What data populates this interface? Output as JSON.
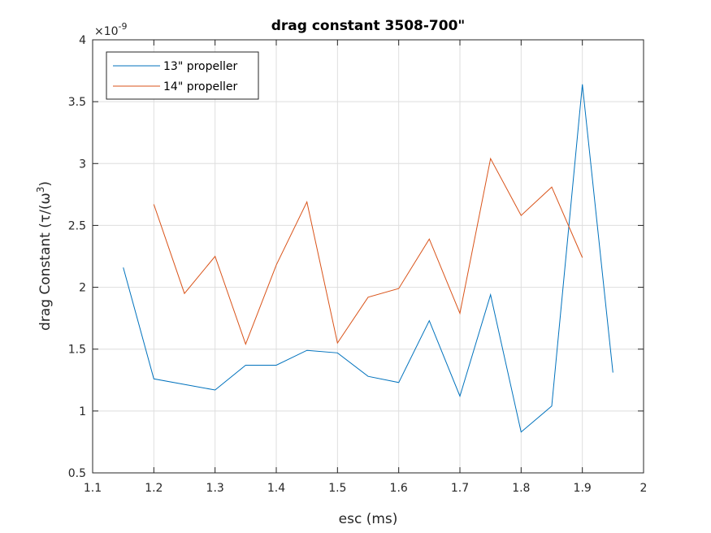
{
  "chart_data": {
    "type": "line",
    "title": "drag constant 3508-700\"",
    "xlabel": "esc (ms)",
    "ylabel": "drag Constant (τ/(ω",
    "ylabel_superscript": "3",
    "ylabel_suffix": ")",
    "y_exponent_label": "×10",
    "y_exponent_power": "-9",
    "xlim": [
      1.1,
      2.0
    ],
    "ylim": [
      0.5,
      4.0
    ],
    "xticks": [
      "1.1",
      "1.2",
      "1.3",
      "1.4",
      "1.5",
      "1.6",
      "1.7",
      "1.8",
      "1.9",
      "2"
    ],
    "yticks": [
      "0.5",
      "1",
      "1.5",
      "2",
      "2.5",
      "3",
      "3.5",
      "4"
    ],
    "grid": true,
    "legend_position": "top-left",
    "series": [
      {
        "name": "13\" propeller",
        "color": "#0072BD",
        "x": [
          1.15,
          1.2,
          1.3,
          1.35,
          1.4,
          1.45,
          1.5,
          1.55,
          1.6,
          1.65,
          1.7,
          1.75,
          1.8,
          1.85,
          1.9,
          1.95
        ],
        "y": [
          2.16,
          1.26,
          1.17,
          1.37,
          1.37,
          1.49,
          1.47,
          1.28,
          1.23,
          1.73,
          1.12,
          1.94,
          0.83,
          1.04,
          3.64,
          1.31
        ]
      },
      {
        "name": "14\" propeller",
        "color": "#D95319",
        "x": [
          1.2,
          1.25,
          1.3,
          1.35,
          1.4,
          1.45,
          1.5,
          1.55,
          1.6,
          1.65,
          1.7,
          1.75,
          1.8,
          1.85,
          1.9
        ],
        "y": [
          2.67,
          1.95,
          2.25,
          1.54,
          2.18,
          2.69,
          1.55,
          1.92,
          1.99,
          2.39,
          1.79,
          3.04,
          2.58,
          2.81,
          2.24
        ]
      }
    ]
  }
}
